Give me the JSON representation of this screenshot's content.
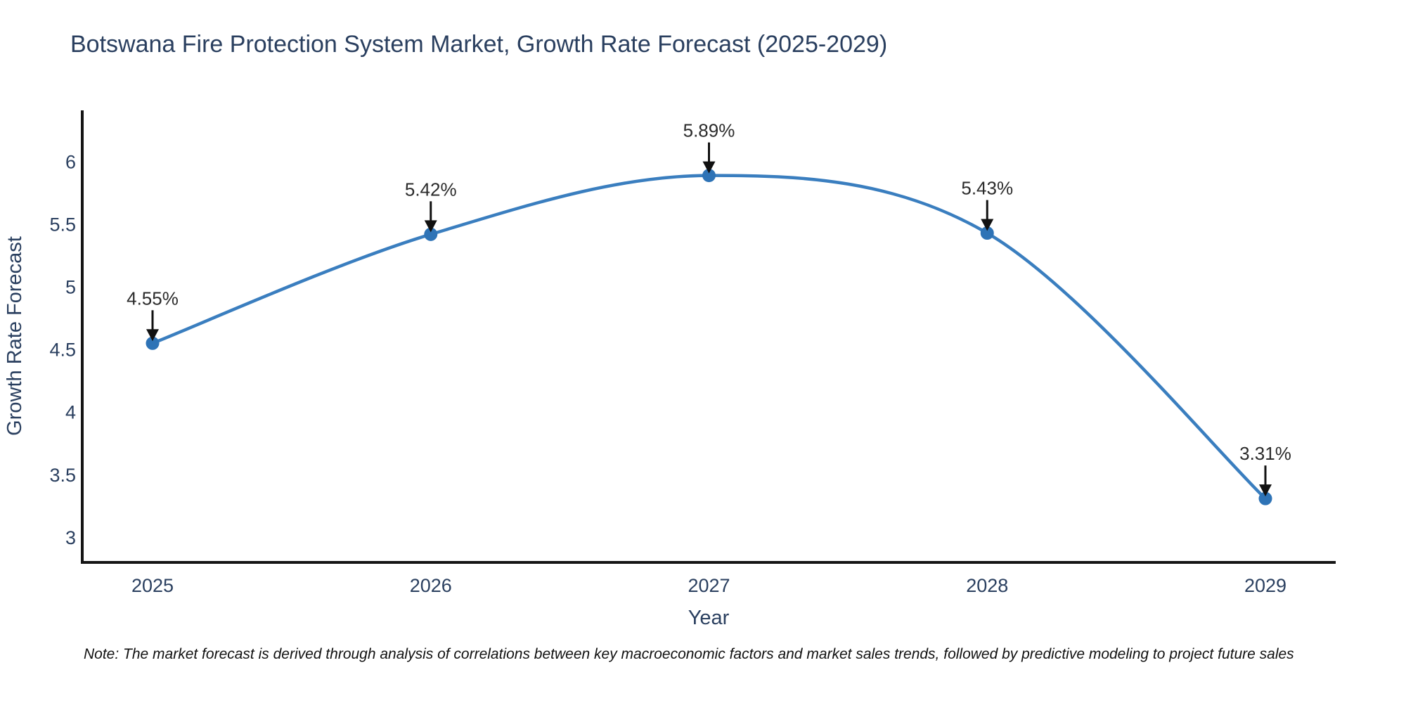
{
  "title": "Botswana Fire Protection System Market, Growth Rate Forecast (2025-2029)",
  "note": "Note: The market forecast is derived through analysis of correlations between key macroeconomic factors and market sales trends, followed by predictive modeling to project future sales",
  "chart_data": {
    "type": "line",
    "title": "Botswana Fire Protection System Market, Growth Rate Forecast (2025-2029)",
    "xlabel": "Year",
    "ylabel": "Growth Rate Forecast",
    "categories": [
      "2025",
      "2026",
      "2027",
      "2028",
      "2029"
    ],
    "values": [
      4.55,
      5.42,
      5.89,
      5.43,
      3.31
    ],
    "point_labels": [
      "4.55%",
      "5.42%",
      "5.89%",
      "5.43%",
      "3.31%"
    ],
    "yticks": [
      "3",
      "3.5",
      "4",
      "4.5",
      "5",
      "5.5",
      "6"
    ],
    "ytick_values": [
      3,
      3.5,
      4,
      4.5,
      5,
      5.5,
      6
    ],
    "ylim": [
      2.8,
      6.41
    ],
    "line_shape": "spline",
    "grid": false,
    "legend": "none",
    "colors": {
      "line": "#3a7ebf",
      "marker": "#2e73b6",
      "axis": "#151515",
      "tick_text": "#2a3f5f",
      "annotation_text": "#2b2b2b",
      "arrow": "#111111",
      "title_text": "#2a3f5f"
    }
  }
}
